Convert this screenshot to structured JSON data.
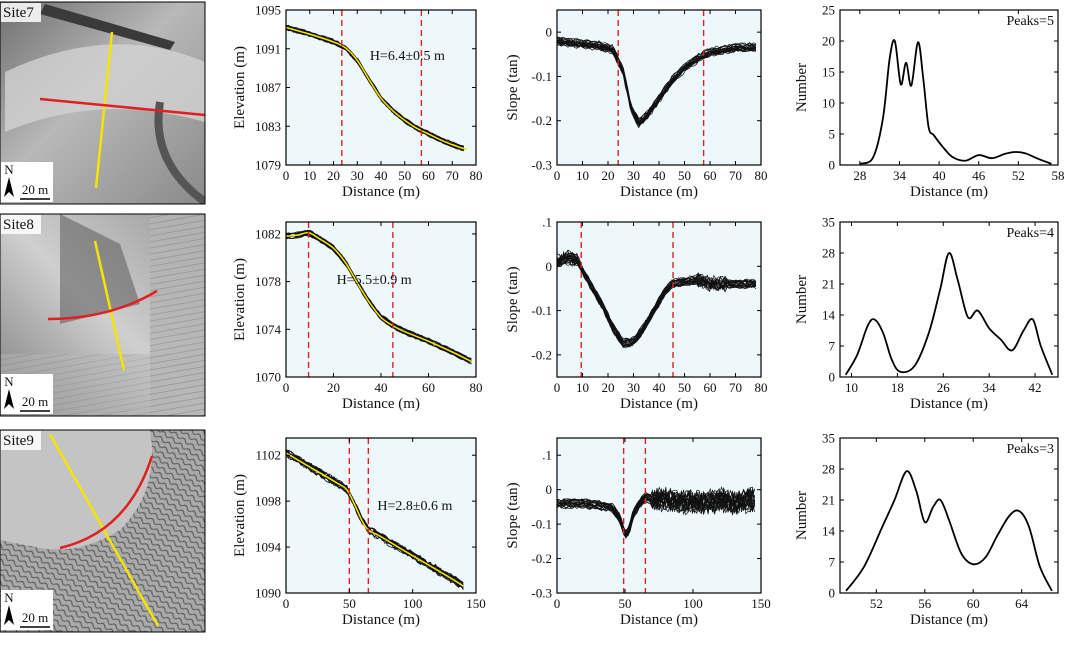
{
  "colors": {
    "panel_bg": "#eef8fc",
    "profile": "#111111",
    "median": "#f0e000",
    "marker": "#e02020",
    "map_yellow": "#f4e400",
    "map_red": "#e02020"
  },
  "sites": [
    {
      "label": "Site7",
      "north": "N",
      "scale": "20 m",
      "chart_data": [
        {
          "type": "line",
          "kind": "elevation",
          "xlabel": "Distance (m)",
          "ylabel": "Elevation (m)",
          "xlim": [
            0,
            80
          ],
          "ylim": [
            1079,
            1095
          ],
          "xticks": [
            0,
            10,
            20,
            30,
            40,
            50,
            60,
            70,
            80
          ],
          "yticks": [
            1079,
            1083,
            1087,
            1091,
            1095
          ],
          "markers_x": [
            23.5,
            57
          ],
          "annotation": "H=6.4±0.5 m",
          "series": [
            {
              "name": "median profile",
              "x": [
                0,
                10,
                20,
                25,
                30,
                35,
                40,
                45,
                50,
                55,
                60,
                65,
                70,
                76
              ],
              "y": [
                1093.2,
                1092.5,
                1091.7,
                1091.1,
                1089.8,
                1087.8,
                1085.9,
                1084.6,
                1083.6,
                1082.8,
                1082.2,
                1081.6,
                1081.1,
                1080.6
              ]
            }
          ]
        },
        {
          "type": "line",
          "kind": "slope",
          "xlabel": "Distance (m)",
          "ylabel": "Slope (tan)",
          "xlim": [
            0,
            80
          ],
          "ylim": [
            -0.3,
            0.05
          ],
          "xticks": [
            0,
            10,
            20,
            30,
            40,
            50,
            60,
            70,
            80
          ],
          "yticks": [
            0,
            -0.1,
            -0.2,
            -0.3
          ],
          "markers_x": [
            24,
            57.5
          ],
          "series": [
            {
              "name": "slope profiles",
              "x": [
                0,
                8,
                16,
                22,
                26,
                29,
                32,
                35,
                40,
                45,
                50,
                55,
                60,
                70,
                78
              ],
              "y": [
                -0.02,
                -0.025,
                -0.03,
                -0.04,
                -0.09,
                -0.17,
                -0.205,
                -0.19,
                -0.15,
                -0.11,
                -0.08,
                -0.06,
                -0.045,
                -0.035,
                -0.035
              ]
            }
          ]
        },
        {
          "type": "line",
          "kind": "distribution",
          "xlabel": "Distance (m)",
          "ylabel": "Number",
          "xlim": [
            25,
            58
          ],
          "ylim": [
            0,
            25
          ],
          "xticks": [
            28,
            34,
            40,
            46,
            52,
            58
          ],
          "yticks": [
            0,
            5,
            10,
            15,
            20,
            25
          ],
          "annotation": "Peaks=5",
          "series": [
            {
              "name": "density",
              "x": [
                28,
                30,
                31.5,
                32.5,
                33.3,
                34.2,
                35,
                35.8,
                36.8,
                37.6,
                38.4,
                39.2,
                40.5,
                42,
                44,
                46,
                48,
                50,
                51.5,
                53,
                55,
                57
              ],
              "y": [
                0.2,
                1.2,
                7.5,
                17,
                20,
                13,
                16.5,
                12.8,
                19.8,
                14,
                6.2,
                4.8,
                3,
                1.3,
                0.7,
                1.6,
                1.1,
                1.8,
                2.1,
                1.9,
                1,
                0.2
              ]
            }
          ]
        }
      ]
    },
    {
      "label": "Site8",
      "north": "N",
      "scale": "20 m",
      "chart_data": [
        {
          "type": "line",
          "kind": "elevation",
          "xlabel": "Distance (m)",
          "ylabel": "Elevation (m)",
          "xlim": [
            0,
            80
          ],
          "ylim": [
            1070,
            1083
          ],
          "xticks": [
            0,
            20,
            40,
            60,
            80
          ],
          "yticks": [
            1070,
            1074,
            1078,
            1082
          ],
          "markers_x": [
            9.5,
            45
          ],
          "annotation": "H=5.5±0.9 m",
          "series": [
            {
              "name": "median profile",
              "x": [
                0,
                5,
                9.5,
                14,
                20,
                25,
                30,
                35,
                40,
                45,
                50,
                60,
                70,
                78
              ],
              "y": [
                1081.8,
                1081.9,
                1082.1,
                1081.6,
                1080.8,
                1079.6,
                1077.9,
                1076.3,
                1075.0,
                1074.3,
                1073.8,
                1073.0,
                1072.1,
                1071.3
              ]
            }
          ]
        },
        {
          "type": "line",
          "kind": "slope",
          "xlabel": "Distance (m)",
          "ylabel": "Slope (tan)",
          "xlim": [
            0,
            80
          ],
          "ylim": [
            -0.25,
            0.1
          ],
          "xticks": [
            0,
            10,
            20,
            30,
            40,
            50,
            60,
            70,
            80
          ],
          "yticks": [
            0.1,
            0,
            -0.1,
            -0.2
          ],
          "markers_x": [
            9.5,
            45.5
          ],
          "series": [
            {
              "name": "slope profiles",
              "x": [
                0,
                4,
                8,
                10,
                14,
                18,
                22,
                26,
                30,
                34,
                38,
                42,
                45,
                50,
                55,
                60,
                70,
                78
              ],
              "y": [
                0.01,
                0.02,
                0.015,
                -0.01,
                -0.05,
                -0.09,
                -0.14,
                -0.175,
                -0.17,
                -0.14,
                -0.1,
                -0.06,
                -0.04,
                -0.035,
                -0.03,
                -0.04,
                -0.04,
                -0.04
              ]
            }
          ]
        },
        {
          "type": "line",
          "kind": "distribution",
          "xlabel": "Distance (m)",
          "ylabel": "Number",
          "xlim": [
            8,
            46
          ],
          "ylim": [
            0,
            35
          ],
          "xticks": [
            10,
            18,
            26,
            34,
            42
          ],
          "yticks": [
            0,
            7,
            14,
            21,
            28,
            35
          ],
          "annotation": "Peaks=4",
          "series": [
            {
              "name": "density",
              "x": [
                9,
                11,
                12.8,
                14,
                15.5,
                17,
                18.5,
                21,
                23.5,
                25.5,
                27,
                28.5,
                30.3,
                32,
                34,
                36,
                38,
                40,
                41.6,
                43,
                45
              ],
              "y": [
                0.5,
                5,
                11.5,
                13,
                10,
                4,
                1.2,
                2.5,
                10,
                20,
                28,
                22,
                13.5,
                15,
                11,
                8.5,
                6,
                10.5,
                13,
                7,
                0.5
              ]
            }
          ]
        }
      ]
    },
    {
      "label": "Site9",
      "north": "N",
      "scale": "20 m",
      "chart_data": [
        {
          "type": "line",
          "kind": "elevation",
          "xlabel": "Distance (m)",
          "ylabel": "Elevation (m)",
          "xlim": [
            0,
            150
          ],
          "ylim": [
            1090,
            1103.5
          ],
          "xticks": [
            0,
            50,
            100,
            150
          ],
          "yticks": [
            1090,
            1094,
            1098,
            1102
          ],
          "markers_x": [
            50,
            65
          ],
          "annotation": "H=2.8±0.6 m",
          "series": [
            {
              "name": "median profile",
              "x": [
                0,
                20,
                40,
                48,
                55,
                60,
                65,
                75,
                90,
                110,
                130,
                140
              ],
              "y": [
                1102.2,
                1100.9,
                1099.6,
                1099.0,
                1097.5,
                1096.3,
                1095.5,
                1094.9,
                1093.9,
                1092.6,
                1091.3,
                1090.6
              ]
            }
          ]
        },
        {
          "type": "line",
          "kind": "slope",
          "xlabel": "Distance (m)",
          "ylabel": "Slope (tan)",
          "xlim": [
            0,
            150
          ],
          "ylim": [
            -0.3,
            0.15
          ],
          "xticks": [
            0,
            50,
            100,
            150
          ],
          "yticks": [
            0.1,
            0,
            -0.1,
            -0.2,
            -0.3
          ],
          "markers_x": [
            49,
            65
          ],
          "series": [
            {
              "name": "slope profiles",
              "x": [
                0,
                10,
                20,
                30,
                40,
                46,
                50,
                53,
                56,
                60,
                65,
                70,
                80,
                90,
                100,
                110,
                120,
                130,
                140,
                147
              ],
              "y": [
                -0.04,
                -0.04,
                -0.04,
                -0.045,
                -0.05,
                -0.08,
                -0.13,
                -0.12,
                -0.07,
                -0.045,
                -0.02,
                -0.03,
                -0.03,
                -0.035,
                -0.035,
                -0.04,
                -0.03,
                -0.04,
                -0.03,
                -0.03
              ]
            }
          ]
        },
        {
          "type": "line",
          "kind": "distribution",
          "xlabel": "Distance (m)",
          "ylabel": "Number",
          "xlim": [
            49,
            67
          ],
          "ylim": [
            0,
            35
          ],
          "xticks": [
            52,
            56,
            60,
            64
          ],
          "yticks": [
            0,
            7,
            14,
            21,
            28,
            35
          ],
          "annotation": "Peaks=3",
          "series": [
            {
              "name": "density",
              "x": [
                49.5,
                51,
                52.5,
                53.5,
                54.5,
                55.3,
                56,
                56.7,
                57.3,
                58,
                59,
                60,
                61,
                62,
                63,
                63.8,
                64.6,
                65.5,
                66.5
              ],
              "y": [
                0.5,
                6,
                15,
                21,
                27.5,
                23,
                16,
                19.5,
                21,
                16.5,
                9,
                6.5,
                8,
                13,
                17.5,
                18.5,
                15,
                6,
                0.5
              ]
            }
          ]
        }
      ]
    }
  ]
}
